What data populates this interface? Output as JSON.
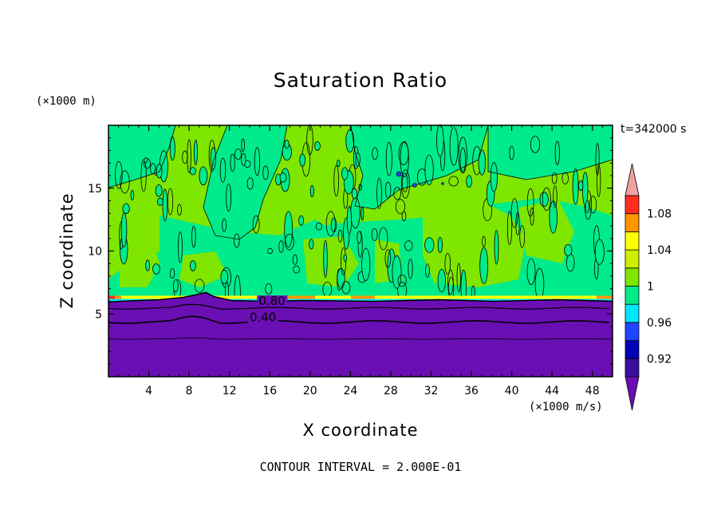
{
  "chart_data": {
    "type": "contour",
    "title": "Saturation Ratio",
    "xlabel": "X coordinate",
    "ylabel": "Z coordinate",
    "x_unit": "(×1000 m/s)",
    "y_unit": "(×1000 m)",
    "time_label": "t=342000 s",
    "footer": "CONTOUR INTERVAL = 2.000E-01",
    "xlim": [
      0,
      50
    ],
    "ylim": [
      0,
      20
    ],
    "x_ticks": [
      4,
      8,
      12,
      16,
      20,
      24,
      28,
      32,
      36,
      40,
      44,
      48
    ],
    "y_ticks": [
      5,
      10,
      15
    ],
    "colorbar": {
      "levels": [
        0.9,
        0.92,
        0.94,
        0.96,
        0.98,
        1.0,
        1.02,
        1.04,
        1.06,
        1.08,
        1.1
      ],
      "labels": [
        "0.92",
        "0.96",
        "1",
        "1.04",
        "1.08"
      ],
      "label_values": [
        0.92,
        0.96,
        1.0,
        1.04,
        1.08
      ],
      "colors": [
        "#3a0fa0",
        "#0000b4",
        "#1e46ff",
        "#00e6ff",
        "#00eb8c",
        "#7fe600",
        "#cdf000",
        "#ffff00",
        "#ff9600",
        "#ff2d1e",
        "#f2a0a0"
      ],
      "under_color": "#6a0fb3",
      "over_color": "#f2a0a0"
    },
    "contour_labels": [
      {
        "text": "0.80",
        "x": 14.9,
        "z": 5.7
      },
      {
        "text": "0.40",
        "x": 14.0,
        "z": 4.4
      }
    ],
    "regions": {
      "low_layer_top_z": 6.0,
      "low_layer_value": "< 0.90",
      "upper_values": [
        0.98,
        1.0
      ]
    }
  }
}
